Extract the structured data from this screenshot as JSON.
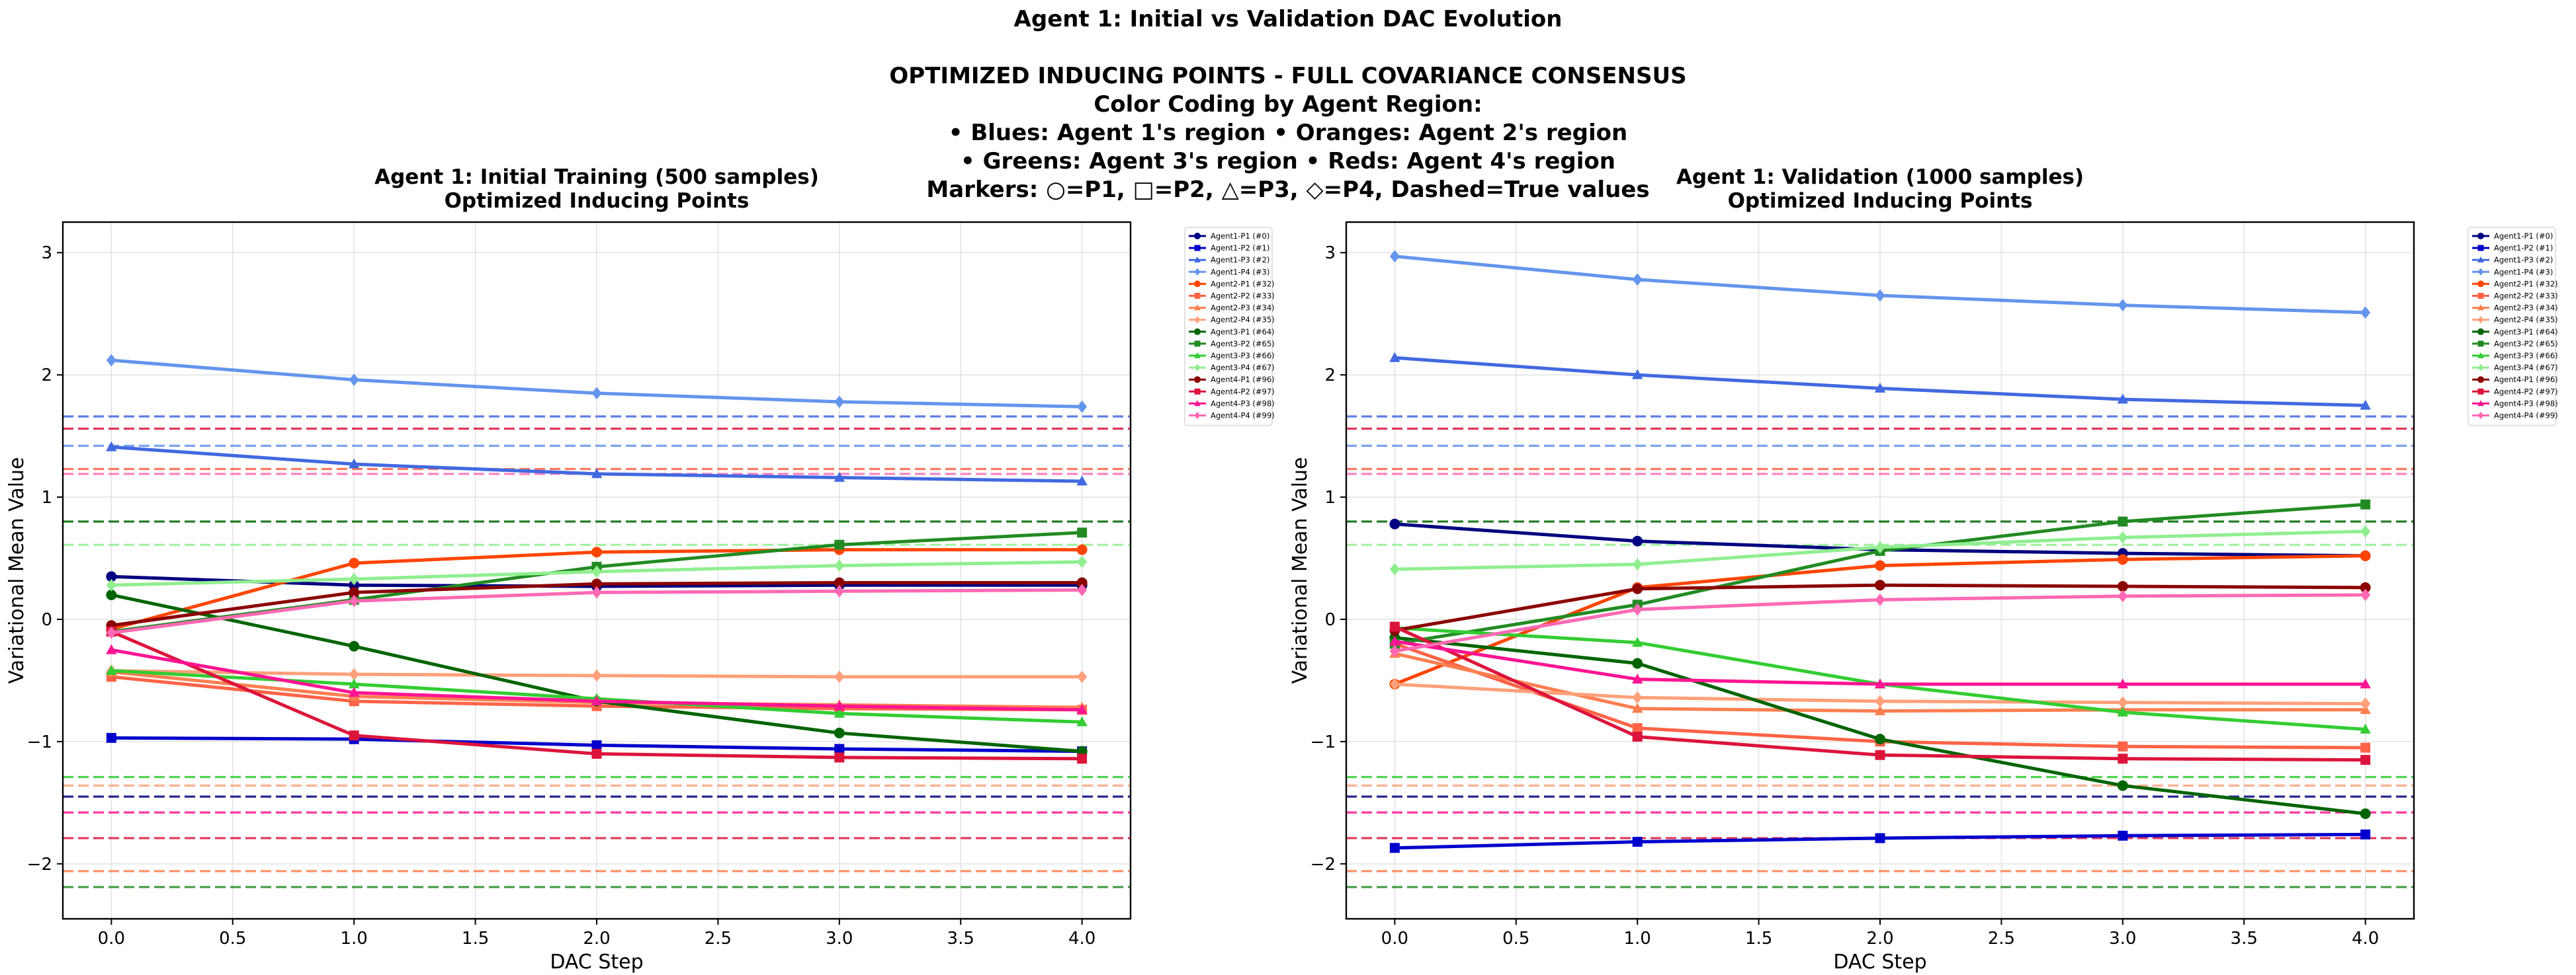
{
  "figure": {
    "suptitle_lines": [
      "Agent 1: Initial vs Validation DAC Evolution",
      "",
      "OPTIMIZED INDUCING POINTS - FULL COVARIANCE CONSENSUS",
      "Color Coding by Agent Region:",
      "• Blues: Agent 1's region  • Oranges: Agent 2's region",
      "• Greens: Agent 3's region • Reds: Agent 4's region",
      "Markers: ○=P1, □=P2, △=P3, ◇=P4, Dashed=True values"
    ]
  },
  "chart_data": [
    {
      "type": "line",
      "title": "Agent 1: Initial Training (500 samples)\nOptimized Inducing Points",
      "xlabel": "DAC Step",
      "ylabel": "Variational Mean Value",
      "xlim": [
        -0.2,
        4.2
      ],
      "ylim": [
        -2.45,
        3.25
      ],
      "xticks": [
        0.0,
        0.5,
        1.0,
        1.5,
        2.0,
        2.5,
        3.0,
        3.5,
        4.0
      ],
      "xtick_labels": [
        "0.0",
        "0.5",
        "1.0",
        "1.5",
        "2.0",
        "2.5",
        "3.0",
        "3.5",
        "4.0"
      ],
      "yticks": [
        -2,
        -1,
        0,
        1,
        2,
        3
      ],
      "ytick_labels": [
        "−2",
        "−1",
        "0",
        "1",
        "2",
        "3"
      ],
      "grid": true,
      "legend_position": "outside-right",
      "x": [
        0,
        1,
        2,
        3,
        4
      ],
      "series": [
        {
          "name": "Agent1-P1 (#0)",
          "color": "#000080",
          "marker": "o",
          "values": [
            0.35,
            0.28,
            0.27,
            0.28,
            0.28
          ]
        },
        {
          "name": "Agent1-P2 (#1)",
          "color": "#0000CD",
          "marker": "s",
          "values": [
            -0.97,
            -0.98,
            -1.03,
            -1.06,
            -1.08
          ]
        },
        {
          "name": "Agent1-P3 (#2)",
          "color": "#4169E1",
          "marker": "^",
          "values": [
            1.41,
            1.27,
            1.19,
            1.16,
            1.13
          ]
        },
        {
          "name": "Agent1-P4 (#3)",
          "color": "#6495ED",
          "marker": "D",
          "values": [
            2.12,
            1.96,
            1.85,
            1.78,
            1.74
          ]
        },
        {
          "name": "Agent2-P1 (#32)",
          "color": "#FF4500",
          "marker": "o",
          "values": [
            -0.08,
            0.46,
            0.55,
            0.57,
            0.57
          ]
        },
        {
          "name": "Agent2-P2 (#33)",
          "color": "#FF6347",
          "marker": "s",
          "values": [
            -0.47,
            -0.67,
            -0.71,
            -0.73,
            -0.74
          ]
        },
        {
          "name": "Agent2-P3 (#34)",
          "color": "#FF7F50",
          "marker": "^",
          "values": [
            -0.43,
            -0.63,
            -0.68,
            -0.7,
            -0.72
          ]
        },
        {
          "name": "Agent2-P4 (#35)",
          "color": "#FFA07A",
          "marker": "D",
          "values": [
            -0.42,
            -0.45,
            -0.46,
            -0.47,
            -0.47
          ]
        },
        {
          "name": "Agent3-P1 (#64)",
          "color": "#006400",
          "marker": "o",
          "values": [
            0.2,
            -0.22,
            -0.67,
            -0.93,
            -1.08
          ]
        },
        {
          "name": "Agent3-P2 (#65)",
          "color": "#228B22",
          "marker": "s",
          "values": [
            -0.1,
            0.16,
            0.43,
            0.61,
            0.71
          ]
        },
        {
          "name": "Agent3-P3 (#66)",
          "color": "#32CD32",
          "marker": "^",
          "values": [
            -0.42,
            -0.53,
            -0.65,
            -0.77,
            -0.84
          ]
        },
        {
          "name": "Agent3-P4 (#67)",
          "color": "#90EE90",
          "marker": "D",
          "values": [
            0.28,
            0.33,
            0.39,
            0.44,
            0.47
          ]
        },
        {
          "name": "Agent4-P1 (#96)",
          "color": "#8B0000",
          "marker": "o",
          "values": [
            -0.05,
            0.22,
            0.29,
            0.3,
            0.3
          ]
        },
        {
          "name": "Agent4-P2 (#97)",
          "color": "#DC143C",
          "marker": "s",
          "values": [
            -0.1,
            -0.95,
            -1.1,
            -1.13,
            -1.14
          ]
        },
        {
          "name": "Agent4-P3 (#98)",
          "color": "#FF1493",
          "marker": "^",
          "values": [
            -0.25,
            -0.6,
            -0.67,
            -0.71,
            -0.74
          ]
        },
        {
          "name": "Agent4-P4 (#99)",
          "color": "#FF69B4",
          "marker": "D",
          "values": [
            -0.11,
            0.15,
            0.22,
            0.23,
            0.24
          ]
        }
      ],
      "true_values": [
        {
          "value": 1.66,
          "color": "#4169E1"
        },
        {
          "value": 1.56,
          "color": "#DC143C"
        },
        {
          "value": 1.42,
          "color": "#6495ED"
        },
        {
          "value": 1.23,
          "color": "#FF6347"
        },
        {
          "value": 1.19,
          "color": "#FF69B4"
        },
        {
          "value": 0.8,
          "color": "#006400"
        },
        {
          "value": 0.61,
          "color": "#90EE90"
        },
        {
          "value": -1.29,
          "color": "#32CD32"
        },
        {
          "value": -1.36,
          "color": "#FFA07A"
        },
        {
          "value": -1.45,
          "color": "#000080"
        },
        {
          "value": -1.58,
          "color": "#FF1493"
        },
        {
          "value": -1.79,
          "color": "#DC143C"
        },
        {
          "value": -2.06,
          "color": "#FF7F50"
        },
        {
          "value": -2.19,
          "color": "#228B22"
        }
      ]
    },
    {
      "type": "line",
      "title": "Agent 1: Validation (1000 samples)\nOptimized Inducing Points",
      "xlabel": "DAC Step",
      "ylabel": "Variational Mean Value",
      "xlim": [
        -0.2,
        4.2
      ],
      "ylim": [
        -2.45,
        3.25
      ],
      "xticks": [
        0.0,
        0.5,
        1.0,
        1.5,
        2.0,
        2.5,
        3.0,
        3.5,
        4.0
      ],
      "xtick_labels": [
        "0.0",
        "0.5",
        "1.0",
        "1.5",
        "2.0",
        "2.5",
        "3.0",
        "3.5",
        "4.0"
      ],
      "yticks": [
        -2,
        -1,
        0,
        1,
        2,
        3
      ],
      "ytick_labels": [
        "−2",
        "−1",
        "0",
        "1",
        "2",
        "3"
      ],
      "grid": true,
      "legend_position": "outside-right",
      "x": [
        0,
        1,
        2,
        3,
        4
      ],
      "series": [
        {
          "name": "Agent1-P1 (#0)",
          "color": "#000080",
          "marker": "o",
          "values": [
            0.78,
            0.64,
            0.57,
            0.54,
            0.52
          ]
        },
        {
          "name": "Agent1-P2 (#1)",
          "color": "#0000CD",
          "marker": "s",
          "values": [
            -1.87,
            -1.82,
            -1.79,
            -1.77,
            -1.76
          ]
        },
        {
          "name": "Agent1-P3 (#2)",
          "color": "#4169E1",
          "marker": "^",
          "values": [
            2.14,
            2.0,
            1.89,
            1.8,
            1.75
          ]
        },
        {
          "name": "Agent1-P4 (#3)",
          "color": "#6495ED",
          "marker": "D",
          "values": [
            2.97,
            2.78,
            2.65,
            2.57,
            2.51
          ]
        },
        {
          "name": "Agent2-P1 (#32)",
          "color": "#FF4500",
          "marker": "o",
          "values": [
            -0.53,
            0.26,
            0.44,
            0.49,
            0.52
          ]
        },
        {
          "name": "Agent2-P2 (#33)",
          "color": "#FF6347",
          "marker": "s",
          "values": [
            -0.2,
            -0.89,
            -1.0,
            -1.04,
            -1.05
          ]
        },
        {
          "name": "Agent2-P3 (#34)",
          "color": "#FF7F50",
          "marker": "^",
          "values": [
            -0.28,
            -0.73,
            -0.75,
            -0.74,
            -0.74
          ]
        },
        {
          "name": "Agent2-P4 (#35)",
          "color": "#FFA07A",
          "marker": "D",
          "values": [
            -0.53,
            -0.64,
            -0.67,
            -0.68,
            -0.69
          ]
        },
        {
          "name": "Agent3-P1 (#64)",
          "color": "#006400",
          "marker": "o",
          "values": [
            -0.15,
            -0.36,
            -0.98,
            -1.36,
            -1.59
          ]
        },
        {
          "name": "Agent3-P2 (#65)",
          "color": "#228B22",
          "marker": "s",
          "values": [
            -0.2,
            0.12,
            0.56,
            0.8,
            0.94
          ]
        },
        {
          "name": "Agent3-P3 (#66)",
          "color": "#32CD32",
          "marker": "^",
          "values": [
            -0.07,
            -0.19,
            -0.53,
            -0.76,
            -0.9
          ]
        },
        {
          "name": "Agent3-P4 (#67)",
          "color": "#90EE90",
          "marker": "D",
          "values": [
            0.41,
            0.45,
            0.59,
            0.67,
            0.72
          ]
        },
        {
          "name": "Agent4-P1 (#96)",
          "color": "#8B0000",
          "marker": "o",
          "values": [
            -0.09,
            0.25,
            0.28,
            0.27,
            0.26
          ]
        },
        {
          "name": "Agent4-P2 (#97)",
          "color": "#DC143C",
          "marker": "s",
          "values": [
            -0.06,
            -0.96,
            -1.11,
            -1.14,
            -1.15
          ]
        },
        {
          "name": "Agent4-P3 (#98)",
          "color": "#FF1493",
          "marker": "^",
          "values": [
            -0.18,
            -0.49,
            -0.53,
            -0.53,
            -0.53
          ]
        },
        {
          "name": "Agent4-P4 (#99)",
          "color": "#FF69B4",
          "marker": "D",
          "values": [
            -0.26,
            0.08,
            0.16,
            0.19,
            0.2
          ]
        }
      ],
      "true_values": [
        {
          "value": 1.66,
          "color": "#4169E1"
        },
        {
          "value": 1.56,
          "color": "#DC143C"
        },
        {
          "value": 1.42,
          "color": "#6495ED"
        },
        {
          "value": 1.23,
          "color": "#FF6347"
        },
        {
          "value": 1.19,
          "color": "#FF69B4"
        },
        {
          "value": 0.8,
          "color": "#006400"
        },
        {
          "value": 0.61,
          "color": "#90EE90"
        },
        {
          "value": -1.29,
          "color": "#32CD32"
        },
        {
          "value": -1.36,
          "color": "#FFA07A"
        },
        {
          "value": -1.45,
          "color": "#000080"
        },
        {
          "value": -1.58,
          "color": "#FF1493"
        },
        {
          "value": -1.79,
          "color": "#DC143C"
        },
        {
          "value": -2.06,
          "color": "#FF7F50"
        },
        {
          "value": -2.19,
          "color": "#228B22"
        }
      ]
    }
  ]
}
